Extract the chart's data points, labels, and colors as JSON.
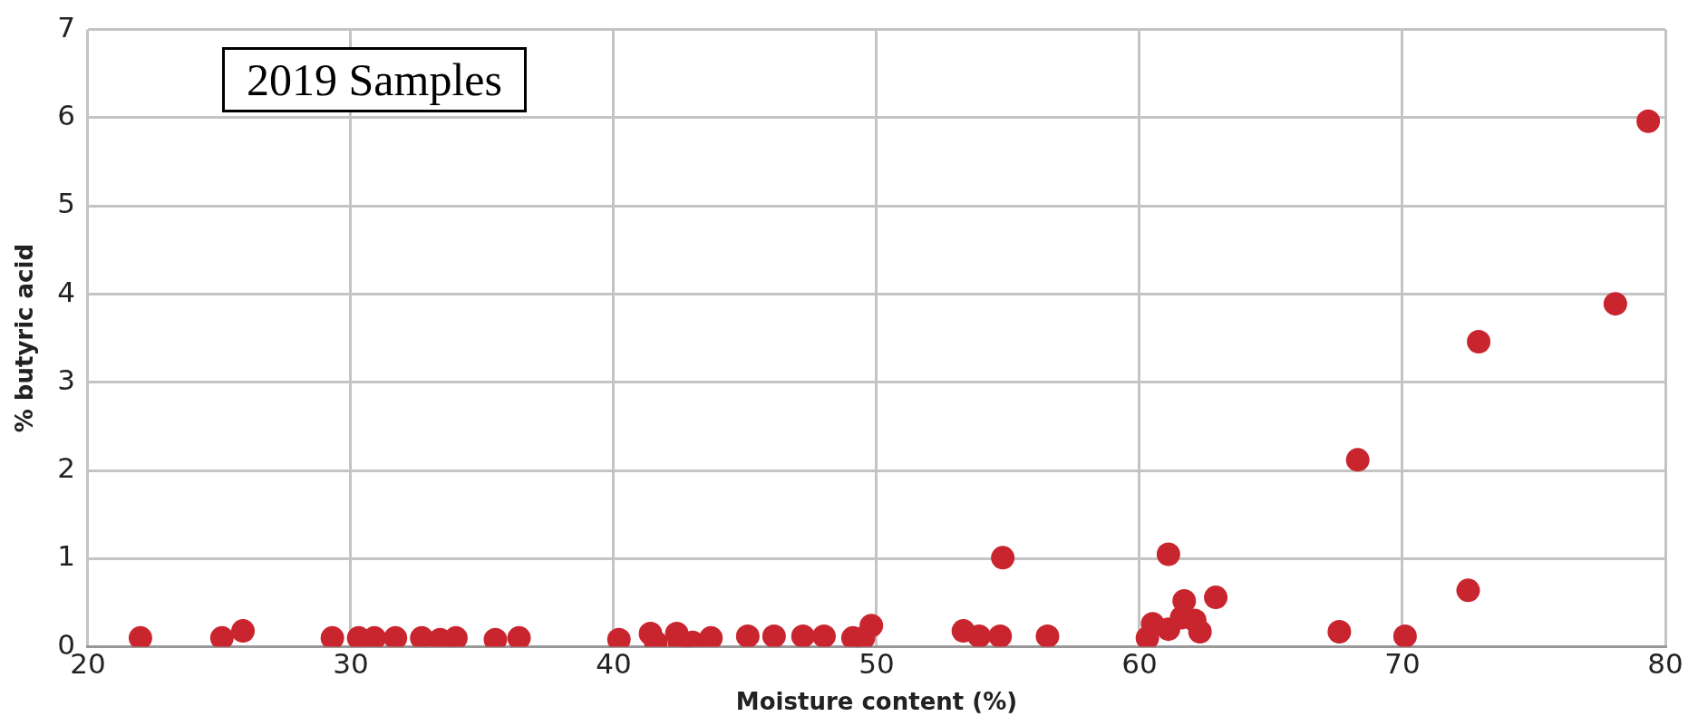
{
  "chart_data": {
    "type": "scatter",
    "xlabel": "Moisture content (%)",
    "ylabel": "% butyric acid",
    "annotations": [
      "2019 Samples"
    ],
    "x": [
      22.0,
      25.1,
      25.9,
      29.3,
      30.3,
      30.9,
      31.7,
      32.7,
      33.4,
      34.0,
      35.5,
      36.4,
      40.2,
      41.4,
      41.6,
      42.4,
      42.5,
      43.0,
      43.7,
      45.1,
      46.1,
      47.2,
      48.0,
      49.1,
      49.5,
      49.8,
      53.3,
      53.9,
      54.7,
      54.8,
      56.5,
      60.3,
      60.5,
      61.1,
      61.1,
      61.6,
      61.7,
      62.1,
      62.3,
      62.9,
      67.6,
      68.3,
      70.1,
      72.5,
      72.9,
      78.1,
      79.35
    ],
    "series": [
      {
        "color": "#c9252f",
        "values": [
          0.1,
          0.1,
          0.18,
          0.1,
          0.1,
          0.1,
          0.1,
          0.1,
          0.08,
          0.1,
          0.08,
          0.1,
          0.08,
          0.15,
          0.05,
          0.15,
          0.05,
          0.05,
          0.1,
          0.12,
          0.12,
          0.12,
          0.12,
          0.1,
          0.1,
          0.24,
          0.18,
          0.12,
          0.12,
          1.01,
          0.12,
          0.1,
          0.26,
          1.05,
          0.2,
          0.33,
          0.52,
          0.3,
          0.17,
          0.56,
          0.17,
          2.12,
          0.12,
          0.64,
          3.46,
          3.89,
          5.96
        ]
      }
    ],
    "xlim": [
      20,
      80
    ],
    "xticks": [
      20,
      30,
      40,
      50,
      60,
      70,
      80
    ],
    "ylim": [
      0,
      7
    ],
    "yticks": [
      0,
      1,
      2,
      3,
      4,
      5,
      6,
      7
    ],
    "grid": true,
    "legend": false,
    "marker": "circle"
  }
}
